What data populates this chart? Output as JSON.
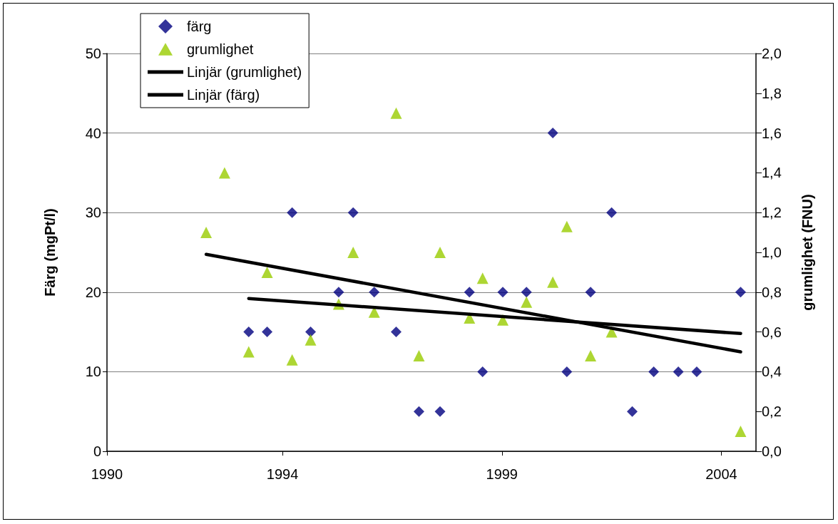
{
  "chart_data": {
    "type": "scatter",
    "ylabel": "Färg (mgPt/l)",
    "y2label": "grumlighet (FNU)",
    "xlim": [
      1990,
      2004.79
    ],
    "xticks": [
      1990,
      1994,
      1999,
      2004
    ],
    "ylim": [
      0,
      50
    ],
    "yticks": [
      0,
      10,
      20,
      30,
      40,
      50
    ],
    "y2lim": [
      0,
      2
    ],
    "y2ticks": [
      {
        "value": 0,
        "label": "0,0"
      },
      {
        "value": 0.2,
        "label": "0,2"
      },
      {
        "value": 0.4,
        "label": "0,4"
      },
      {
        "value": 0.6,
        "label": "0,6"
      },
      {
        "value": 0.8,
        "label": "0,8"
      },
      {
        "value": 1,
        "label": "1,0"
      },
      {
        "value": 1.2,
        "label": "1,2"
      },
      {
        "value": 1.4,
        "label": "1,4"
      },
      {
        "value": 1.6,
        "label": "1,6"
      },
      {
        "value": 1.8,
        "label": "1,8"
      },
      {
        "value": 2,
        "label": "2,0"
      }
    ],
    "grid": "y",
    "legend": "top left",
    "series": [
      {
        "name": "färg",
        "marker": "diamond",
        "color": "#000080",
        "x": [
          1993.23,
          1993.65,
          1994.22,
          1994.64,
          1995.28,
          1995.61,
          1996.09,
          1996.59,
          1997.11,
          1997.59,
          1998.26,
          1998.56,
          1999.02,
          1999.56,
          2000.16,
          2000.48,
          2001.02,
          2001.5,
          2001.97,
          2002.46,
          2003.02,
          2003.44,
          2004.44
        ],
        "values": [
          15,
          15,
          30,
          15,
          20,
          30,
          20,
          15,
          5,
          5,
          20,
          10,
          20,
          20,
          40,
          10,
          20,
          30,
          5,
          10,
          10,
          10,
          20
        ]
      },
      {
        "name": "grumlighet",
        "marker": "triangle",
        "axis": "y2",
        "color": "#99cc00",
        "x": [
          1992.26,
          1992.68,
          1993.23,
          1993.65,
          1994.22,
          1994.64,
          1995.28,
          1995.61,
          1996.09,
          1996.59,
          1997.11,
          1997.59,
          1998.26,
          1998.56,
          1999.02,
          1999.56,
          2000.16,
          2000.48,
          2001.02,
          2001.5,
          2004.44
        ],
        "values": [
          1.1,
          1.4,
          0.5,
          0.9,
          0.46,
          0.56,
          0.74,
          1.0,
          0.7,
          1.7,
          0.48,
          1.0,
          0.67,
          0.87,
          0.66,
          0.75,
          0.85,
          1.13,
          0.48,
          0.6,
          0.1
        ]
      },
      {
        "name": "Linjär (grumlighet)",
        "type": "line",
        "line_style": "solid",
        "marker": "none",
        "axis": "y2",
        "color": "#000000",
        "x": [
          1992.26,
          2004.44
        ],
        "values": [
          0.99,
          0.5
        ]
      },
      {
        "name": "Linjär (färg)",
        "type": "line",
        "line_style": "solid",
        "marker": "none",
        "color": "#000000",
        "x": [
          1993.23,
          2004.44
        ],
        "values": [
          19.2,
          14.8
        ]
      }
    ]
  }
}
